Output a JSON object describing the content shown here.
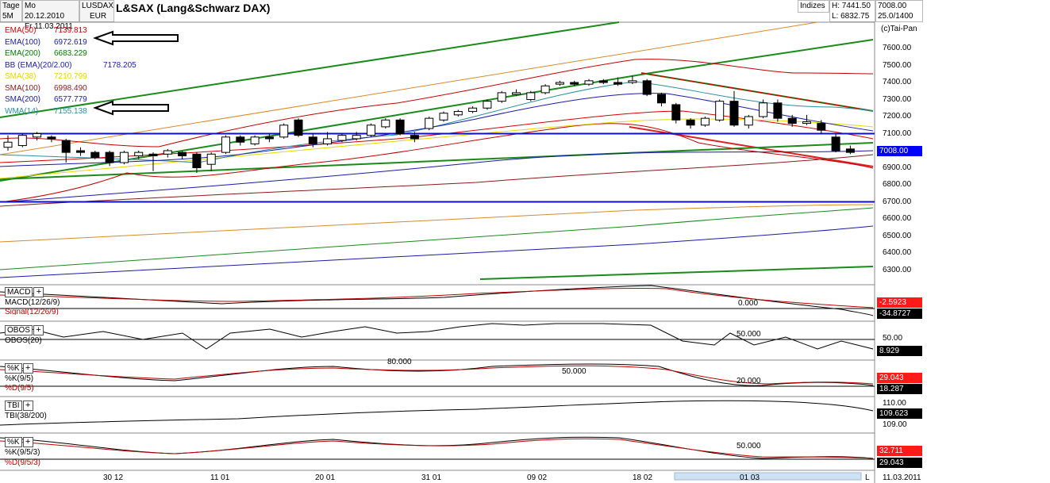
{
  "header": {
    "period_top": "Tage",
    "period_bottom": "5M",
    "date_from": "Mo 20.12.2010",
    "date_to": "Fr 11.03.2011",
    "symbol": "LUSDAX",
    "currency": "EUR",
    "title": "L&SAX (Lang&Schwarz DAX)",
    "index_label": "Indizes",
    "high": "H: 7441.50",
    "low": "L: 6832.75",
    "last": "7008.00",
    "ratio": "25.0/1400",
    "copyright": "(c)Tai-Pan"
  },
  "legend": [
    {
      "label": "EMA(50)",
      "value": "7139.813",
      "color": "#d40000"
    },
    {
      "label": "EMA(100)",
      "value": "6972.619",
      "color": "#1a1aa8"
    },
    {
      "label": "EMA(200)",
      "value": "6683.229",
      "color": "#007a00"
    },
    {
      "label": "BB (EMA)(20/2.00)",
      "value": "7178.205",
      "color": "#1a1aa8"
    },
    {
      "label": "SMA(38)",
      "value": "7210.799",
      "color": "#e6d800"
    },
    {
      "label": "SMA(100)",
      "value": "6998.490",
      "color": "#8b1a1a"
    },
    {
      "label": "SMA(200)",
      "value": "6577.779",
      "color": "#1a1aa8"
    },
    {
      "label": "WMA(14)",
      "value": "7155.138",
      "color": "#2a8fa0"
    }
  ],
  "price_axis": {
    "ticks": [
      "7500.00",
      "7400.00",
      "7300.00",
      "7200.00",
      "7100.00",
      "6900.00",
      "6800.00",
      "6700.00",
      "6600.00",
      "6500.00",
      "6400.00",
      "6300.00"
    ],
    "top_ticks": [
      "7600.00"
    ],
    "current": "7008.00"
  },
  "x_axis": {
    "labels": [
      "30 12",
      "11 01",
      "20 01",
      "31 01",
      "09 02",
      "18 02",
      "01 03"
    ],
    "end_label": "L",
    "end_date": "11.03.2011"
  },
  "panels": {
    "macd": {
      "name": "MACD",
      "label1": "MACD(12/26/9)",
      "label2": "Signal(12/26/9)",
      "ref": "0.000",
      "v1": "-2.5923",
      "v2": "-34.8727"
    },
    "obos": {
      "name": "OBOS",
      "label1": "OBOS(20)",
      "ref": "50.000",
      "v1": "50.00",
      "v2": "8.929"
    },
    "k1": {
      "name": "%K",
      "label1": "%K(9/5)",
      "label2": "%D(9/5)",
      "ref_hi": "80.000",
      "ref_mid": "50.000",
      "ref_lo": "20.000",
      "v1": "29.043",
      "v2": "18.287"
    },
    "tbi": {
      "name": "TBI",
      "label1": "TBI(38/200)",
      "v_top": "110.00",
      "v1": "109.623",
      "v_bot": "109.00"
    },
    "k2": {
      "name": "%K",
      "label1": "%K(9/5/3)",
      "label2": "%D(9/5/3)",
      "ref": "50.000",
      "v1": "32.711",
      "v2": "29.043"
    }
  },
  "chart_data": {
    "type": "candlestick",
    "title": "L&SAX (Lang&Schwarz DAX)",
    "y_range": [
      6250,
      7650
    ],
    "candles": [
      {
        "o": 7020,
        "c": 7050,
        "h": 7090,
        "l": 7000
      },
      {
        "o": 7030,
        "c": 7090,
        "h": 7100,
        "l": 7020
      },
      {
        "o": 7080,
        "c": 7100,
        "h": 7110,
        "l": 7060
      },
      {
        "o": 7080,
        "c": 7070,
        "h": 7090,
        "l": 7050
      },
      {
        "o": 7060,
        "c": 6990,
        "h": 7070,
        "l": 6930
      },
      {
        "o": 7000,
        "c": 6990,
        "h": 7020,
        "l": 6970
      },
      {
        "o": 6990,
        "c": 6960,
        "h": 7000,
        "l": 6950
      },
      {
        "o": 6990,
        "c": 6930,
        "h": 7000,
        "l": 6910
      },
      {
        "o": 6930,
        "c": 6990,
        "h": 7000,
        "l": 6920
      },
      {
        "o": 6970,
        "c": 6990,
        "h": 7000,
        "l": 6950
      },
      {
        "o": 6980,
        "c": 6970,
        "h": 6990,
        "l": 6880
      },
      {
        "o": 6980,
        "c": 7000,
        "h": 7010,
        "l": 6960
      },
      {
        "o": 6990,
        "c": 6970,
        "h": 7000,
        "l": 6950
      },
      {
        "o": 6980,
        "c": 6900,
        "h": 6990,
        "l": 6870
      },
      {
        "o": 6920,
        "c": 6980,
        "h": 6990,
        "l": 6880
      },
      {
        "o": 6990,
        "c": 7080,
        "h": 7090,
        "l": 6980
      },
      {
        "o": 7080,
        "c": 7050,
        "h": 7090,
        "l": 7030
      },
      {
        "o": 7040,
        "c": 7080,
        "h": 7090,
        "l": 7030
      },
      {
        "o": 7080,
        "c": 7070,
        "h": 7100,
        "l": 7050
      },
      {
        "o": 7080,
        "c": 7150,
        "h": 7160,
        "l": 7070
      },
      {
        "o": 7180,
        "c": 7090,
        "h": 7190,
        "l": 7080
      },
      {
        "o": 7080,
        "c": 7040,
        "h": 7100,
        "l": 7020
      },
      {
        "o": 7040,
        "c": 7070,
        "h": 7110,
        "l": 7030
      },
      {
        "o": 7060,
        "c": 7090,
        "h": 7100,
        "l": 7050
      },
      {
        "o": 7070,
        "c": 7090,
        "h": 7110,
        "l": 7060
      },
      {
        "o": 7090,
        "c": 7150,
        "h": 7160,
        "l": 7080
      },
      {
        "o": 7140,
        "c": 7180,
        "h": 7190,
        "l": 7130
      },
      {
        "o": 7180,
        "c": 7100,
        "h": 7190,
        "l": 7090
      },
      {
        "o": 7090,
        "c": 7070,
        "h": 7110,
        "l": 7050
      },
      {
        "o": 7130,
        "c": 7190,
        "h": 7200,
        "l": 7120
      },
      {
        "o": 7180,
        "c": 7220,
        "h": 7230,
        "l": 7170
      },
      {
        "o": 7210,
        "c": 7230,
        "h": 7240,
        "l": 7200
      },
      {
        "o": 7230,
        "c": 7250,
        "h": 7260,
        "l": 7220
      },
      {
        "o": 7250,
        "c": 7290,
        "h": 7300,
        "l": 7240
      },
      {
        "o": 7290,
        "c": 7340,
        "h": 7350,
        "l": 7280
      },
      {
        "o": 7330,
        "c": 7340,
        "h": 7360,
        "l": 7320
      },
      {
        "o": 7300,
        "c": 7340,
        "h": 7350,
        "l": 7290
      },
      {
        "o": 7340,
        "c": 7380,
        "h": 7390,
        "l": 7330
      },
      {
        "o": 7390,
        "c": 7400,
        "h": 7410,
        "l": 7380
      },
      {
        "o": 7400,
        "c": 7390,
        "h": 7410,
        "l": 7380
      },
      {
        "o": 7390,
        "c": 7410,
        "h": 7420,
        "l": 7380
      },
      {
        "o": 7410,
        "c": 7400,
        "h": 7420,
        "l": 7390
      },
      {
        "o": 7400,
        "c": 7390,
        "h": 7430,
        "l": 7380
      },
      {
        "o": 7400,
        "c": 7410,
        "h": 7440,
        "l": 7390
      },
      {
        "o": 7410,
        "c": 7330,
        "h": 7420,
        "l": 7320
      },
      {
        "o": 7330,
        "c": 7280,
        "h": 7340,
        "l": 7260
      },
      {
        "o": 7270,
        "c": 7180,
        "h": 7280,
        "l": 7160
      },
      {
        "o": 7180,
        "c": 7150,
        "h": 7190,
        "l": 7130
      },
      {
        "o": 7150,
        "c": 7190,
        "h": 7200,
        "l": 7140
      },
      {
        "o": 7180,
        "c": 7290,
        "h": 7300,
        "l": 7170
      },
      {
        "o": 7290,
        "c": 7150,
        "h": 7350,
        "l": 7140
      },
      {
        "o": 7150,
        "c": 7200,
        "h": 7210,
        "l": 7130
      },
      {
        "o": 7200,
        "c": 7280,
        "h": 7300,
        "l": 7190
      },
      {
        "o": 7280,
        "c": 7190,
        "h": 7300,
        "l": 7170
      },
      {
        "o": 7190,
        "c": 7160,
        "h": 7210,
        "l": 7140
      },
      {
        "o": 7160,
        "c": 7170,
        "h": 7210,
        "l": 7150
      },
      {
        "o": 7160,
        "c": 7120,
        "h": 7180,
        "l": 7100
      },
      {
        "o": 7080,
        "c": 7000,
        "h": 7100,
        "l": 6990
      },
      {
        "o": 7010,
        "c": 6990,
        "h": 7030,
        "l": 6980
      }
    ],
    "horizontal_levels": [
      7100,
      6700
    ]
  }
}
